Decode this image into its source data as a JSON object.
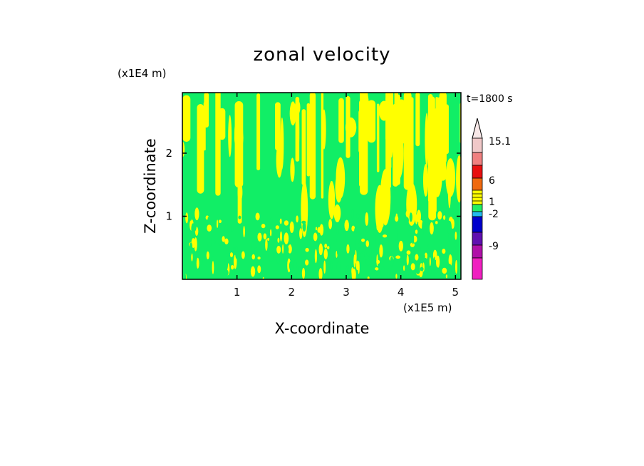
{
  "chart_data": {
    "type": "heatmap",
    "title": "zonal velocity",
    "xlabel": "X-coordinate",
    "ylabel": "Z-coordinate",
    "x_unit": "(x1E5 m)",
    "y_unit": "(x1E4 m)",
    "time_label": "t=1800 s",
    "xlim": [
      0,
      5.1
    ],
    "ylim": [
      0,
      2.96
    ],
    "x_ticks": [
      1,
      2,
      3,
      4,
      5
    ],
    "y_ticks": [
      1,
      2
    ],
    "colorbar": {
      "labels": [
        "15.1",
        "6",
        "1",
        "-2",
        "-9"
      ],
      "colors": [
        "#f0c8c8",
        "#f08080",
        "#e81010",
        "#f06a10",
        "#ffff00",
        "#22ee66",
        "#22bbee",
        "#0000cc",
        "#6010b0",
        "#b010a8",
        "#f020c0"
      ]
    },
    "fields": {
      "positive_color": "#ffff00",
      "negative_color": "#11ee66"
    }
  }
}
